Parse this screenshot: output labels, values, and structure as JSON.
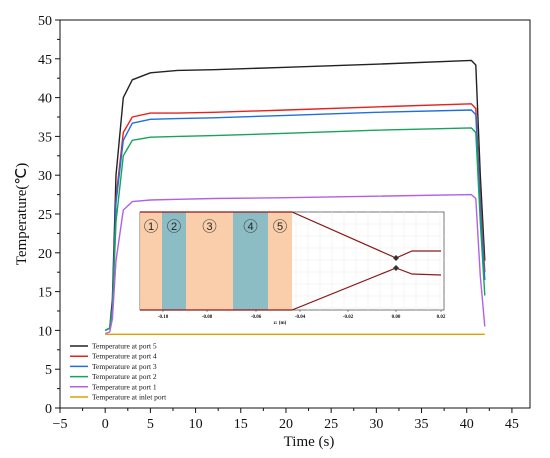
{
  "chart_data": {
    "type": "line",
    "title": "",
    "xlabel": "Time (s)",
    "ylabel": "Temperature(℃)",
    "xlim": [
      -5,
      47
    ],
    "ylim": [
      0,
      50
    ],
    "xticks": [
      -5,
      0,
      5,
      10,
      15,
      20,
      25,
      30,
      35,
      40,
      45
    ],
    "yticks": [
      0,
      5,
      10,
      15,
      20,
      25,
      30,
      35,
      40,
      45,
      50
    ],
    "grid": false,
    "legend_position": "bottom-left",
    "series": [
      {
        "name": "Temperature at port 5",
        "color": "#222222",
        "x": [
          0,
          0.5,
          0.8,
          1.2,
          2,
          3,
          5,
          8,
          12,
          20,
          30,
          40.5,
          41,
          41.5,
          42
        ],
        "y": [
          10,
          10.3,
          14,
          30,
          40,
          42.3,
          43.2,
          43.5,
          43.6,
          43.9,
          44.3,
          44.8,
          44.2,
          30,
          19
        ]
      },
      {
        "name": "Temperature at port 4",
        "color": "#e8211d",
        "x": [
          0,
          0.5,
          0.8,
          1.2,
          2,
          3,
          5,
          8,
          12,
          20,
          30,
          40.5,
          41,
          41.5,
          42
        ],
        "y": [
          10,
          10.3,
          13,
          27,
          35.5,
          37.5,
          38,
          38,
          38.1,
          38.4,
          38.8,
          39.2,
          38.6,
          27,
          17.5
        ]
      },
      {
        "name": "Temperature at port 3",
        "color": "#1f6fe0",
        "x": [
          0,
          0.5,
          0.8,
          1.2,
          2,
          3,
          5,
          8,
          12,
          20,
          30,
          40.5,
          41,
          41.5,
          42
        ],
        "y": [
          10,
          10.3,
          13,
          26.5,
          34.5,
          36.7,
          37.2,
          37.3,
          37.4,
          37.7,
          38.1,
          38.4,
          37.8,
          26,
          16.5
        ]
      },
      {
        "name": "Temperature at port 2",
        "color": "#16a35a",
        "x": [
          0,
          0.5,
          0.8,
          1.2,
          2,
          3,
          5,
          8,
          12,
          20,
          30,
          40.5,
          41,
          41.5,
          42
        ],
        "y": [
          10,
          10.3,
          12.5,
          24,
          32.5,
          34.5,
          34.9,
          35,
          35.1,
          35.4,
          35.8,
          36.1,
          35.5,
          24,
          14.5
        ]
      },
      {
        "name": "Temperature at port 1",
        "color": "#b061e8",
        "x": [
          0,
          0.5,
          0.8,
          1.2,
          2,
          3,
          5,
          8,
          12,
          20,
          30,
          40.5,
          41,
          41.5,
          42
        ],
        "y": [
          9.6,
          9.8,
          11.5,
          19,
          25.5,
          26.6,
          26.8,
          26.9,
          27,
          27.1,
          27.3,
          27.5,
          27,
          17,
          10.5
        ]
      },
      {
        "name": "Temperature at inlet port",
        "color": "#e0a000",
        "x": [
          0,
          42
        ],
        "y": [
          9.5,
          9.5
        ]
      }
    ],
    "inset": {
      "xticks": [
        "-0.10",
        "-0.08",
        "-0.06",
        "-0.04",
        "-0.02",
        "0.00",
        "0.02"
      ],
      "xlabel": "z: (m)",
      "zones": [
        "1",
        "2",
        "3",
        "4",
        "5"
      ]
    }
  }
}
